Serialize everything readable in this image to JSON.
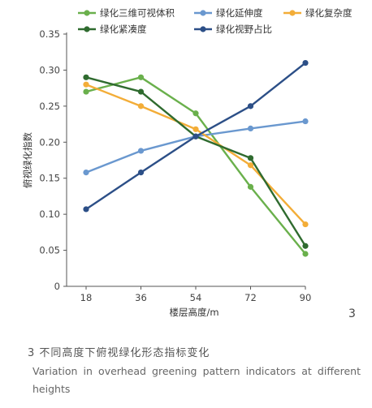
{
  "chart_data": {
    "type": "line",
    "x": [
      18,
      36,
      54,
      72,
      90
    ],
    "xlabel": "楼层高度/m",
    "ylabel": "俯视绿化指数",
    "ylim": [
      0,
      0.35
    ],
    "yticks": [
      "0",
      "0.05",
      "0.10",
      "0.15",
      "0.20",
      "0.25",
      "0.30",
      "0.35"
    ],
    "xticks": [
      "18",
      "36",
      "54",
      "72",
      "90"
    ],
    "grid": false,
    "legend_position": "top",
    "series": [
      {
        "name": "绿化三维可视体积",
        "color": "#6ab04c",
        "values": [
          0.27,
          0.29,
          0.24,
          0.138,
          0.045
        ]
      },
      {
        "name": "绿化延伸度",
        "color": "#6a98cf",
        "values": [
          0.158,
          0.188,
          0.208,
          0.219,
          0.229
        ]
      },
      {
        "name": "绿化复杂度",
        "color": "#f3ad38",
        "values": [
          0.28,
          0.25,
          0.218,
          0.168,
          0.086
        ]
      },
      {
        "name": "绿化紧凑度",
        "color": "#2f6b2f",
        "values": [
          0.29,
          0.27,
          0.208,
          0.178,
          0.056
        ]
      },
      {
        "name": "绿化视野占比",
        "color": "#2c4f87",
        "values": [
          0.107,
          0.158,
          0.208,
          0.25,
          0.31
        ]
      }
    ]
  },
  "figure": {
    "number": "3",
    "caption_zh": "3 不同高度下俯视绿化形态指标变化",
    "caption_en": "Variation in overhead greening pattern indicators at different heights"
  }
}
